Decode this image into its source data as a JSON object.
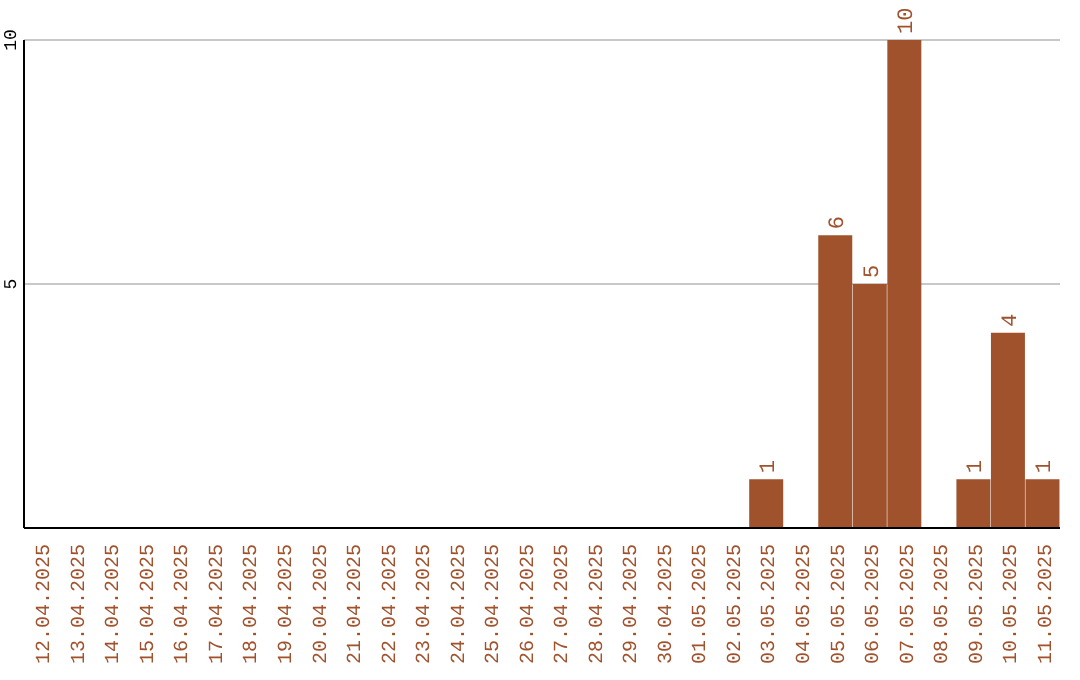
{
  "chart_data": {
    "type": "bar",
    "categories": [
      "12.04.2025",
      "13.04.2025",
      "14.04.2025",
      "15.04.2025",
      "16.04.2025",
      "17.04.2025",
      "18.04.2025",
      "19.04.2025",
      "20.04.2025",
      "21.04.2025",
      "22.04.2025",
      "23.04.2025",
      "24.04.2025",
      "25.04.2025",
      "26.04.2025",
      "27.04.2025",
      "28.04.2025",
      "29.04.2025",
      "30.04.2025",
      "01.05.2025",
      "02.05.2025",
      "03.05.2025",
      "04.05.2025",
      "05.05.2025",
      "06.05.2025",
      "07.05.2025",
      "08.05.2025",
      "09.05.2025",
      "10.05.2025",
      "11.05.2025"
    ],
    "values": [
      0,
      0,
      0,
      0,
      0,
      0,
      0,
      0,
      0,
      0,
      0,
      0,
      0,
      0,
      0,
      0,
      0,
      0,
      0,
      0,
      0,
      1,
      0,
      6,
      5,
      10,
      0,
      1,
      4,
      1
    ],
    "value_labels": [
      null,
      null,
      null,
      null,
      null,
      null,
      null,
      null,
      null,
      null,
      null,
      null,
      null,
      null,
      null,
      null,
      null,
      null,
      null,
      null,
      null,
      "1",
      null,
      "6",
      "5",
      "10",
      null,
      "1",
      "4",
      "1"
    ],
    "color": "#a0522d",
    "ylim": [
      0,
      10
    ],
    "yticks": [
      5,
      10
    ],
    "grid": "y"
  }
}
